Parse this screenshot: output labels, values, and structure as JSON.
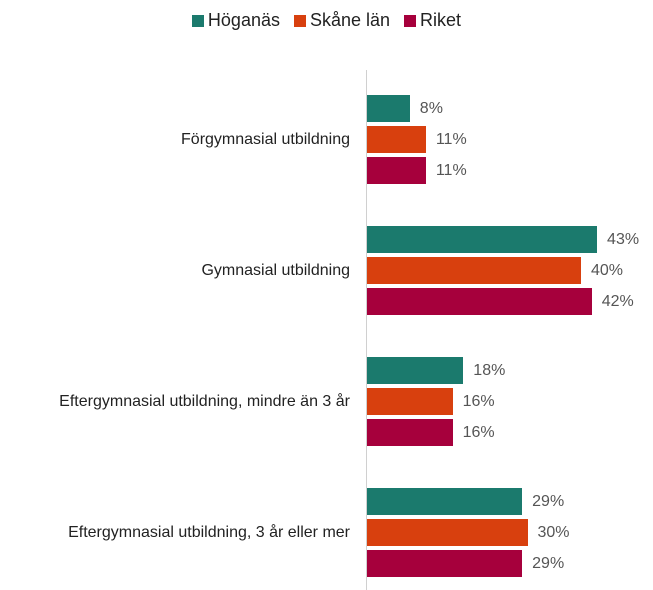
{
  "chart_data": {
    "type": "bar",
    "orientation": "horizontal",
    "categories": [
      "Förgymnasial utbildning",
      "Gymnasial utbildning",
      "Eftergymnasial utbildning, mindre än 3 år",
      "Eftergymnasial utbildning, 3 år eller mer"
    ],
    "series": [
      {
        "name": "Höganäs",
        "color": "#1b7a6d",
        "values": [
          8,
          43,
          18,
          29
        ],
        "value_labels": [
          "8%",
          "43%",
          "18%",
          "29%"
        ]
      },
      {
        "name": "Skåne län",
        "color": "#d8400e",
        "values": [
          11,
          40,
          16,
          30
        ],
        "value_labels": [
          "11%",
          "40%",
          "16%",
          "30%"
        ]
      },
      {
        "name": "Riket",
        "color": "#a6003c",
        "values": [
          11,
          42,
          16,
          29
        ],
        "value_labels": [
          "11%",
          "42%",
          "16%",
          "29%"
        ]
      }
    ],
    "legend": "top"
  }
}
